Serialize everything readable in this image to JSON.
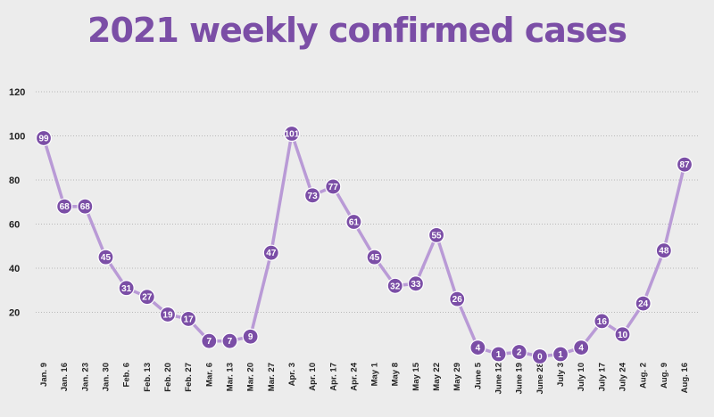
{
  "chart_data": {
    "type": "line",
    "title": "2021 weekly confirmed cases",
    "xlabel": "",
    "ylabel": "",
    "ylim": [
      0,
      120
    ],
    "yticks": [
      20,
      40,
      60,
      80,
      100,
      120
    ],
    "grid": true,
    "colors": {
      "line": "#b99ad6",
      "marker": "#7b4ea6",
      "title": "#7b4ea6",
      "background": "#ececec"
    },
    "categories": [
      "Jan. 9",
      "Jan. 16",
      "Jan. 23",
      "Jan. 30",
      "Feb. 6",
      "Feb. 13",
      "Feb. 20",
      "Feb. 27",
      "Mar. 6",
      "Mar. 13",
      "Mar. 20",
      "Mar. 27",
      "Apr. 3",
      "Apr. 10",
      "Apr. 17",
      "Apr. 24",
      "May 1",
      "May 8",
      "May 15",
      "May 22",
      "May 29",
      "June 5",
      "June 12",
      "June 19",
      "June 28",
      "July 3",
      "July 10",
      "July 17",
      "July 24",
      "Aug. 2",
      "Aug. 9",
      "Aug. 16"
    ],
    "series": [
      {
        "values": [
          99,
          68,
          68,
          45,
          31,
          27,
          19,
          17,
          7,
          7,
          9,
          47,
          101,
          73,
          77,
          61,
          45,
          32,
          33,
          55,
          26,
          4,
          1,
          2,
          0,
          1,
          4,
          16,
          10,
          24,
          48,
          87
        ]
      }
    ]
  }
}
